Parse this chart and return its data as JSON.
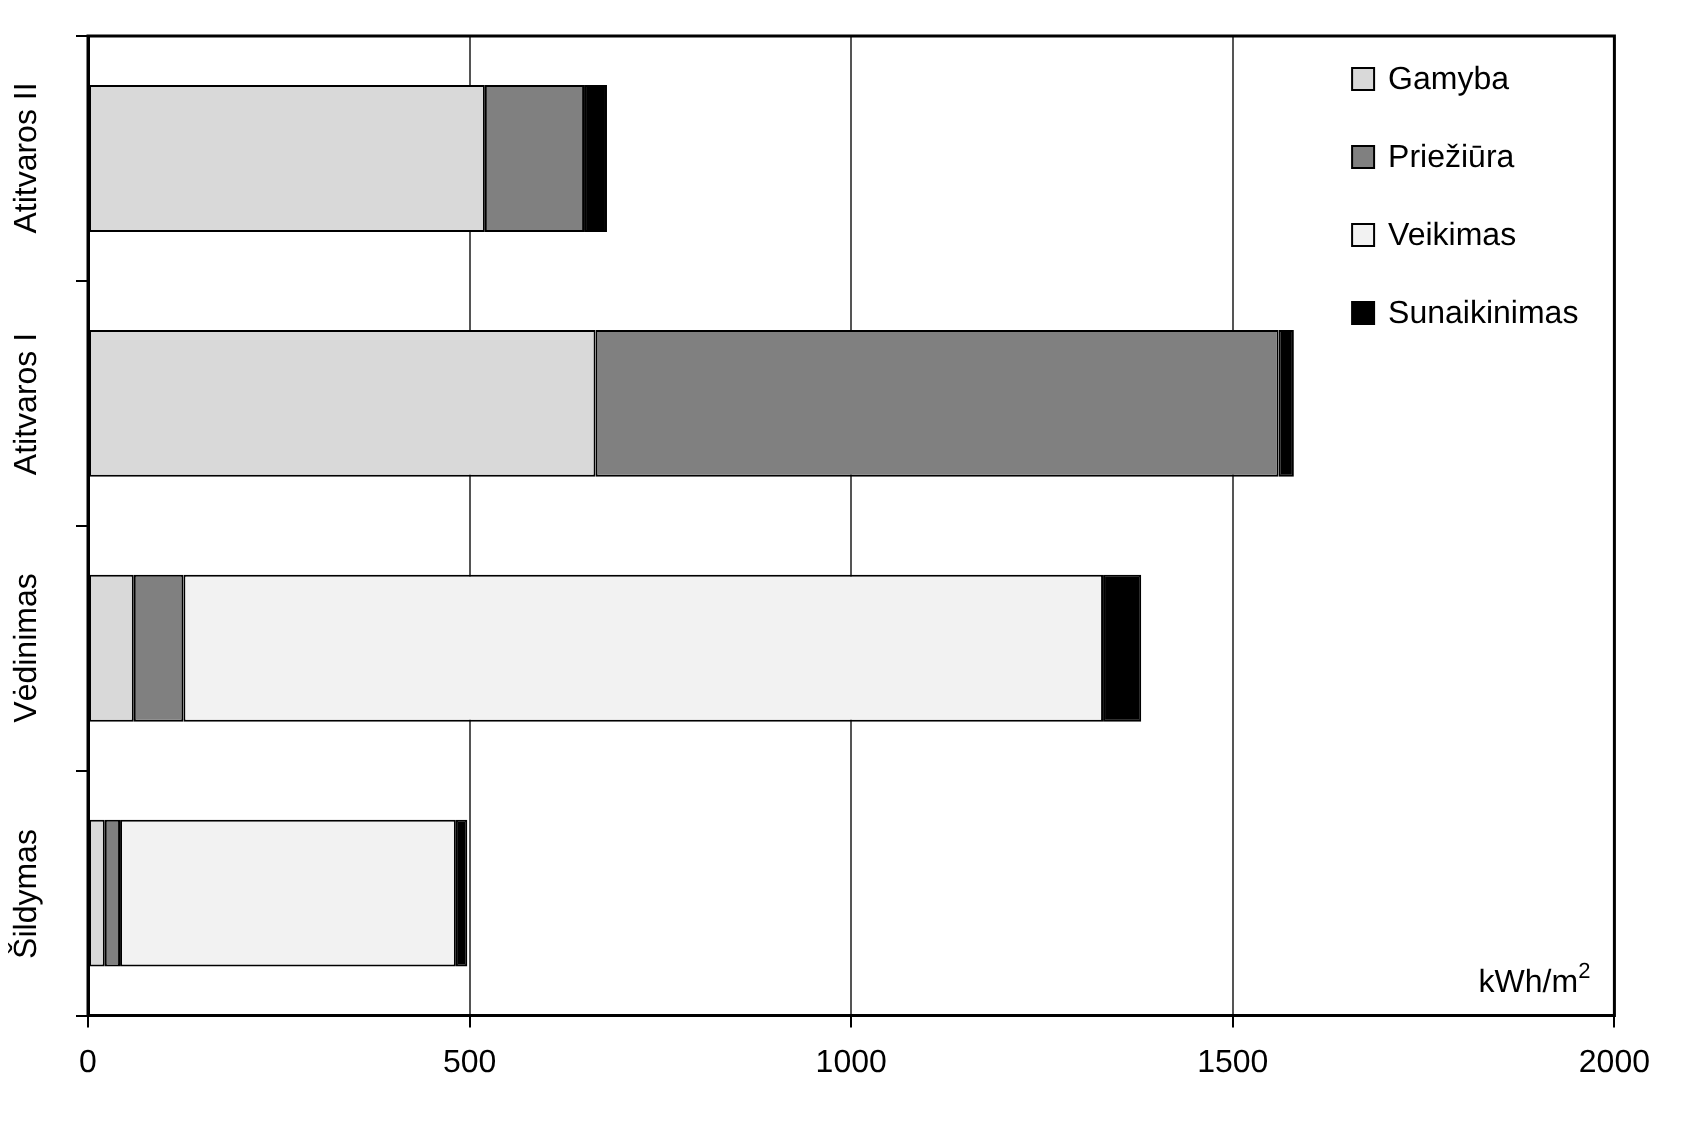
{
  "chart_data": {
    "type": "bar",
    "orientation": "horizontal",
    "stacked": true,
    "xlabel": "kWh/m$^{2}$",
    "categories": [
      "Atitvaros II",
      "Atitvaros I",
      "Vėdinimas",
      "Šildymas"
    ],
    "series": [
      {
        "name": "Gamyba",
        "color": "#d9d9d9",
        "values": [
          520,
          665,
          60,
          22
        ]
      },
      {
        "name": "Priežiūra",
        "color": "#808080",
        "values": [
          130,
          895,
          65,
          20
        ]
      },
      {
        "name": "Veikimas",
        "color": "#f2f2f2",
        "values": [
          0,
          0,
          1205,
          440
        ]
      },
      {
        "name": "Sunaikinimas",
        "color": "#000000",
        "values": [
          30,
          20,
          50,
          15
        ]
      }
    ],
    "xlim": [
      0,
      2000
    ],
    "xticks": [
      0,
      500,
      1000,
      1500,
      2000
    ],
    "grid": "x",
    "legend": "top right"
  }
}
